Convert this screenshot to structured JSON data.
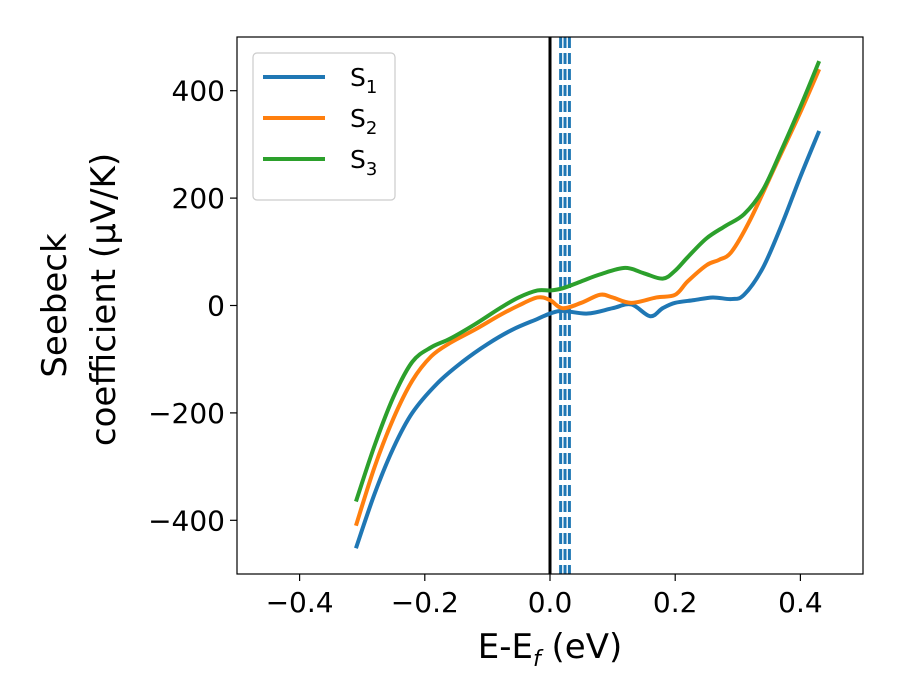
{
  "chart_data": {
    "type": "line",
    "xlabel": "E-E",
    "xlabel_sub": "f",
    "xlabel_unit": " (eV)",
    "ylabel_line1": "Seebeck",
    "ylabel_line2": "coefficient  (μV/K)",
    "xlim": [
      -0.5,
      0.5
    ],
    "ylim": [
      -500,
      500
    ],
    "xticks": [
      -0.4,
      -0.2,
      0.0,
      0.2,
      0.4
    ],
    "xtick_labels": [
      "−0.4",
      "−0.2",
      "0.0",
      "0.2",
      "0.4"
    ],
    "yticks": [
      -400,
      -200,
      0,
      200,
      400
    ],
    "ytick_labels": [
      "−400",
      "−200",
      "0",
      "200",
      "400"
    ],
    "grid": false,
    "legend_position": "top-left",
    "vertical_lines": [
      {
        "x": 0.0,
        "style": "solid",
        "color": "#000000"
      },
      {
        "x": 0.017,
        "style": "dashed",
        "color": "#1f77b4"
      },
      {
        "x": 0.024,
        "style": "dashed",
        "color": "#1f77b4"
      },
      {
        "x": 0.031,
        "style": "dashed",
        "color": "#1f77b4"
      }
    ],
    "series": [
      {
        "name": "S",
        "subscript": "1",
        "color": "#1f77b4",
        "x": [
          -0.31,
          -0.28,
          -0.25,
          -0.22,
          -0.18,
          -0.14,
          -0.1,
          -0.06,
          -0.02,
          0.0,
          0.02,
          0.06,
          0.1,
          0.13,
          0.16,
          0.18,
          0.2,
          0.23,
          0.26,
          0.29,
          0.31,
          0.34,
          0.37,
          0.4,
          0.43
        ],
        "y": [
          -452,
          -350,
          -265,
          -200,
          -145,
          -105,
          -72,
          -45,
          -25,
          -15,
          -10,
          -15,
          -5,
          2,
          -20,
          -5,
          5,
          10,
          15,
          12,
          20,
          70,
          150,
          240,
          325
        ]
      },
      {
        "name": "S",
        "subscript": "2",
        "color": "#ff7f0e",
        "x": [
          -0.31,
          -0.28,
          -0.25,
          -0.22,
          -0.19,
          -0.16,
          -0.12,
          -0.08,
          -0.05,
          -0.02,
          0.0,
          0.02,
          0.05,
          0.08,
          0.1,
          0.13,
          0.17,
          0.2,
          0.22,
          0.25,
          0.27,
          0.29,
          0.32,
          0.36,
          0.4,
          0.43
        ],
        "y": [
          -410,
          -300,
          -210,
          -140,
          -95,
          -70,
          -45,
          -18,
          0,
          15,
          10,
          -5,
          5,
          20,
          15,
          5,
          15,
          20,
          45,
          75,
          85,
          100,
          160,
          260,
          360,
          440
        ]
      },
      {
        "name": "S",
        "subscript": "3",
        "color": "#2ca02c",
        "x": [
          -0.31,
          -0.28,
          -0.25,
          -0.22,
          -0.19,
          -0.16,
          -0.12,
          -0.08,
          -0.05,
          -0.02,
          0.0,
          0.02,
          0.05,
          0.08,
          0.12,
          0.15,
          0.18,
          0.2,
          0.22,
          0.25,
          0.28,
          0.31,
          0.34,
          0.37,
          0.4,
          0.43
        ],
        "y": [
          -365,
          -260,
          -170,
          -105,
          -78,
          -62,
          -35,
          -5,
          15,
          28,
          28,
          32,
          45,
          58,
          70,
          60,
          50,
          65,
          90,
          125,
          148,
          170,
          215,
          290,
          370,
          455
        ]
      }
    ]
  }
}
